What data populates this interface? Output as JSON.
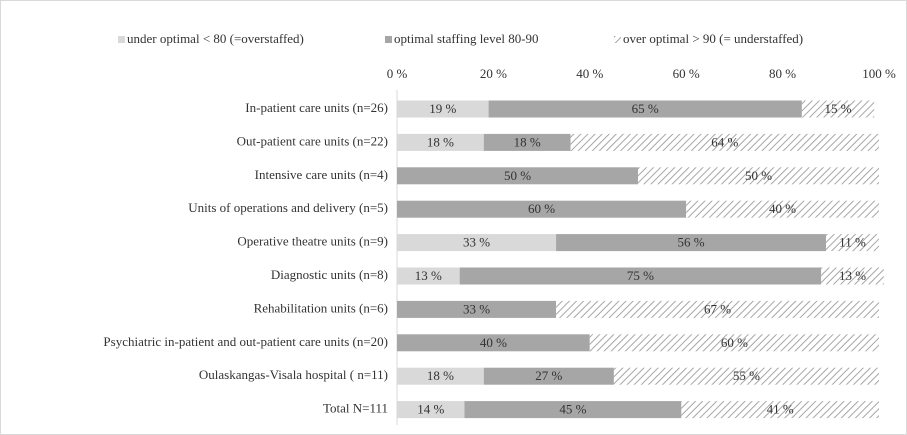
{
  "chart_data": {
    "type": "stacked_barh",
    "categories": [
      "In-patient care units (n=26)",
      "Out-patient care units (n=22)",
      "Intensive care units (n=4)",
      "Units of operations and delivery (n=5)",
      "Operative theatre units (n=9)",
      "Diagnostic units (n=8)",
      "Rehabilitation units (n=6)",
      "Psychiatric in-patient and out-patient care units (n=20)",
      "Oulaskangas-Visala hospital ( n=11)",
      "Total N=111"
    ],
    "series": [
      {
        "name": "under optimal < 80 (=overstaffed)",
        "color": "#d9d9d9",
        "hatch": false,
        "values": [
          19,
          18,
          null,
          null,
          33,
          13,
          null,
          null,
          18,
          14
        ],
        "value_labels": [
          "19 %",
          "18 %",
          null,
          null,
          "33 %",
          "13 %",
          null,
          null,
          "18 %",
          "14 %"
        ]
      },
      {
        "name": "optimal staffing level 80-90",
        "color": "#a6a6a6",
        "hatch": false,
        "values": [
          65,
          18,
          50,
          60,
          56,
          75,
          33,
          40,
          27,
          45
        ],
        "value_labels": [
          "65 %",
          "18 %",
          "50 %",
          "60 %",
          "56 %",
          "75 %",
          "33 %",
          "40 %",
          "27 %",
          "45 %"
        ]
      },
      {
        "name": "over optimal > 90 (= understaffed)",
        "color": "#a6a6a6",
        "hatch": true,
        "values": [
          15,
          64,
          50,
          40,
          11,
          13,
          67,
          60,
          55,
          41
        ],
        "value_labels": [
          "15 %",
          "64 %",
          "50 %",
          "40 %",
          "11 %",
          "13 %",
          "67 %",
          "60 %",
          "55 %",
          "41 %"
        ]
      }
    ],
    "xlim": [
      0,
      100
    ],
    "xticks": [
      {
        "value": 0,
        "label": "0 %"
      },
      {
        "value": 20,
        "label": "20 %"
      },
      {
        "value": 40,
        "label": "40 %"
      },
      {
        "value": 60,
        "label": "60 %"
      },
      {
        "value": 80,
        "label": "80 %"
      },
      {
        "value": 100,
        "label": "100 %"
      }
    ],
    "legend": "top",
    "grid": false
  }
}
